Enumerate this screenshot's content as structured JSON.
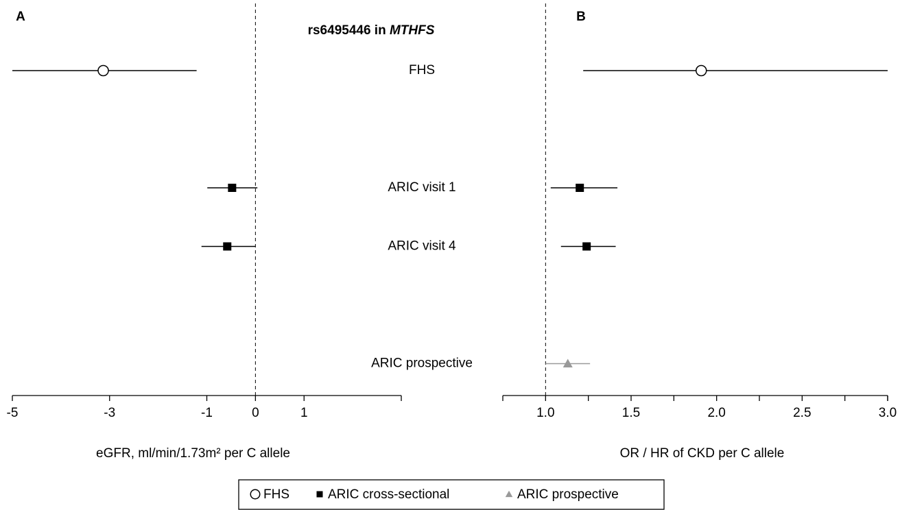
{
  "title": "rs6495446 in",
  "title_gene": "MTHFS",
  "rows": [
    "FHS",
    "ARIC visit 1",
    "ARIC visit 4",
    "ARIC prospective"
  ],
  "row_group": [
    0,
    1,
    1,
    2
  ],
  "legend": [
    {
      "name": "FHS",
      "marker": "circle",
      "color": "#000000"
    },
    {
      "name": "ARIC cross-sectional",
      "marker": "square",
      "color": "#000000"
    },
    {
      "name": "ARIC prospective",
      "marker": "triangle",
      "color": "#999999"
    }
  ],
  "chart_data": [
    {
      "type": "forest",
      "panel": "A",
      "xlabel": "eGFR, ml/min/1.73m² per C allele",
      "xlim": [
        -5,
        3
      ],
      "xticks": [
        -5,
        -3,
        -1,
        0,
        1
      ],
      "ref_line": 0,
      "values": [
        -3.13,
        -0.48,
        -0.58,
        null
      ],
      "ci_low": [
        -5,
        -0.99,
        -1.11,
        null
      ],
      "ci_high": [
        -1.21,
        0.04,
        0.0,
        null
      ]
    },
    {
      "type": "forest",
      "panel": "B",
      "xlabel": "OR / HR of CKD per C allele",
      "xlim": [
        0.75,
        3.0
      ],
      "xticks": [
        {
          "value": 1,
          "label": "1.0"
        },
        1.5,
        {
          "value": 2,
          "label": "2.0"
        },
        2.5,
        {
          "value": 3,
          "label": "3.0"
        }
      ],
      "minor_xticks": [
        0.75,
        1.25,
        1.75,
        2.25,
        2.75
      ],
      "ref_line": 1,
      "values": [
        1.91,
        1.2,
        1.24,
        1.13
      ],
      "ci_low": [
        1.22,
        1.03,
        1.09,
        1.0
      ],
      "ci_high": [
        3.0,
        1.42,
        1.41,
        1.26
      ]
    }
  ]
}
